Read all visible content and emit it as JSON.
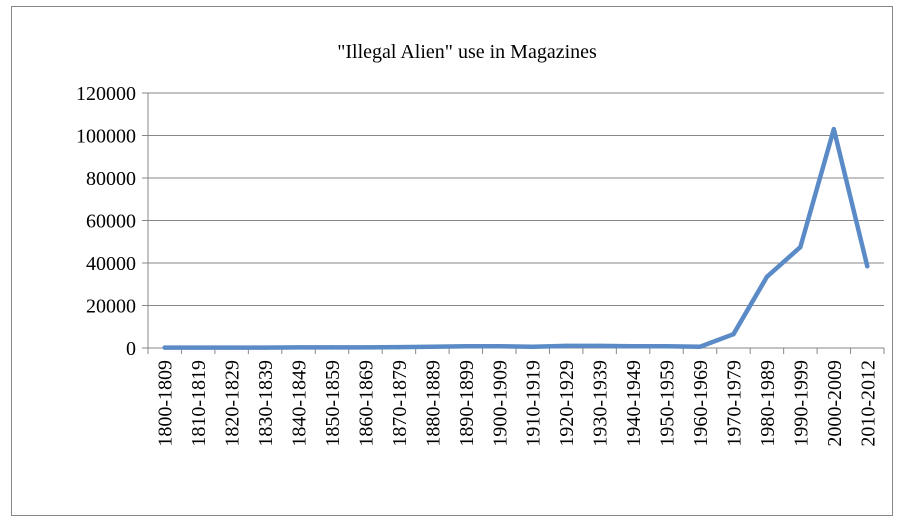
{
  "chart_data": {
    "type": "line",
    "title": "\"Illegal Alien\" use in Magazines",
    "xlabel": "",
    "ylabel": "",
    "categories": [
      "1800-1809",
      "1810-1819",
      "1820-1829",
      "1830-1839",
      "1840-1849",
      "1850-1859",
      "1860-1869",
      "1870-1879",
      "1880-1889",
      "1890-1899",
      "1900-1909",
      "1910-1919",
      "1920-1929",
      "1930-1939",
      "1940-1949",
      "1950-1959",
      "1960-1969",
      "1970-1979",
      "1980-1989",
      "1990-1999",
      "2000-2009",
      "2010-2012"
    ],
    "yticks": [
      "0",
      "20000",
      "40000",
      "60000",
      "80000",
      "100000",
      "120000"
    ],
    "ylim": [
      0,
      120000
    ],
    "grid": true,
    "legend": "none",
    "line_color": "#5b8bc7",
    "series": [
      {
        "values": [
          200,
          200,
          200,
          200,
          300,
          300,
          300,
          400,
          600,
          800,
          800,
          600,
          1000,
          1000,
          800,
          800,
          600,
          6500,
          33500,
          47500,
          103000,
          38500
        ]
      }
    ]
  }
}
